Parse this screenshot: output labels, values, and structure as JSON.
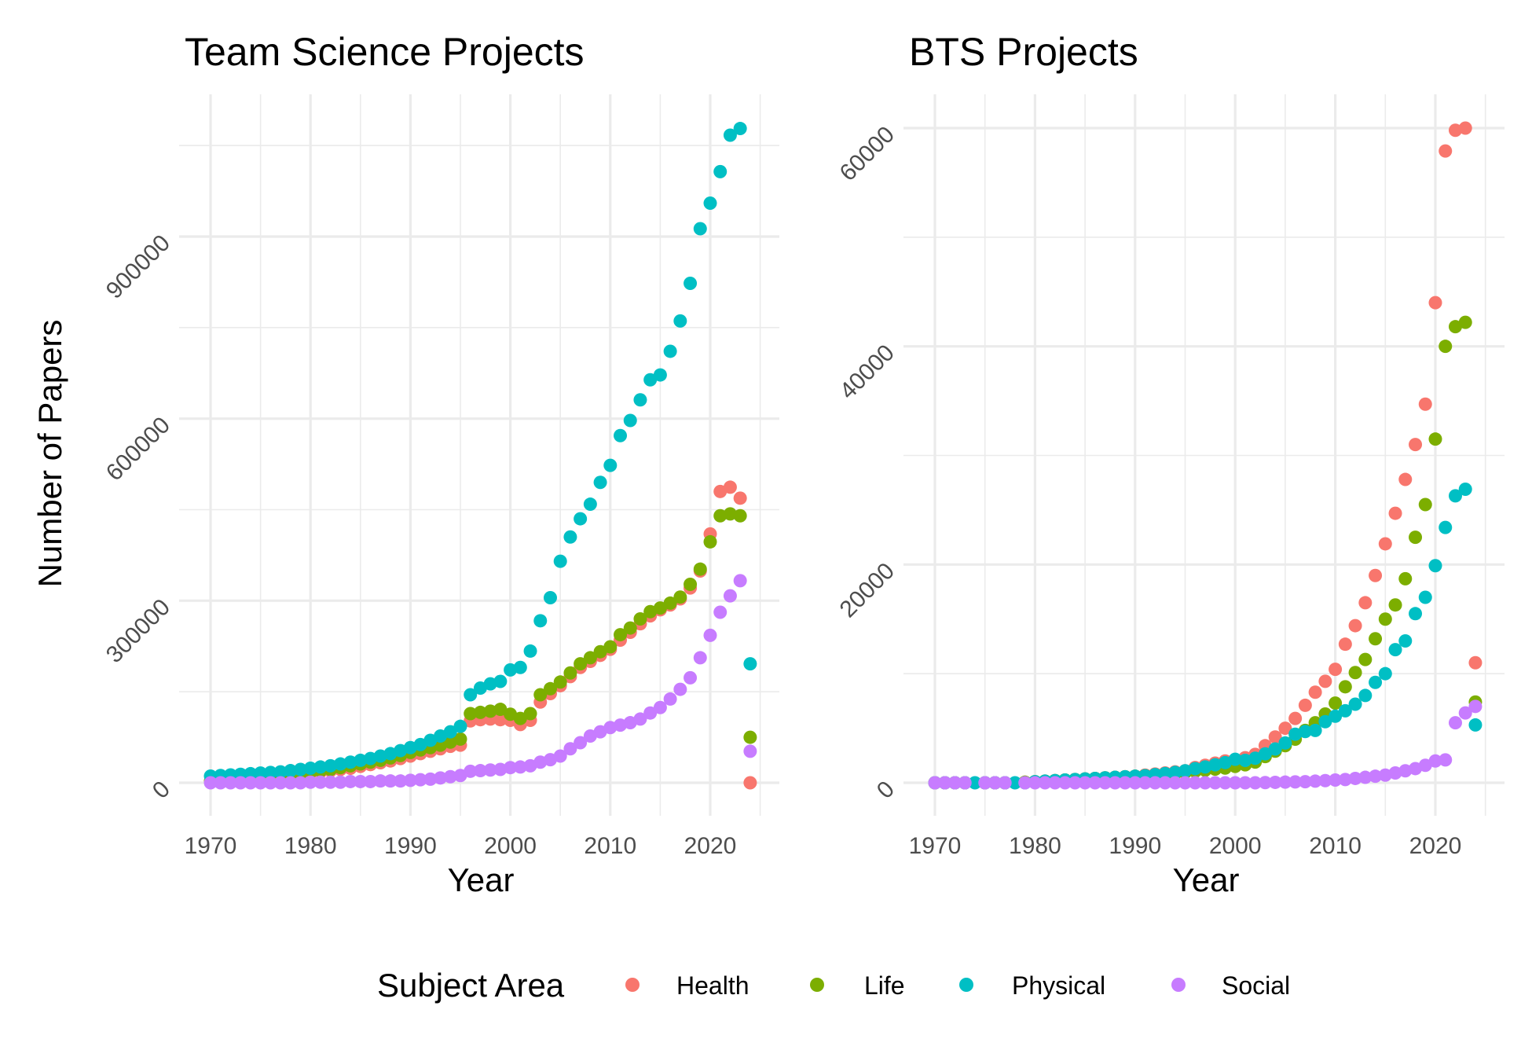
{
  "colors": {
    "Health": "#F8766D",
    "Life": "#7CAE00",
    "Physical": "#00BFC4",
    "Social": "#C77CFF"
  },
  "legend": {
    "title": "Subject Area",
    "placement": "bottom",
    "items": [
      {
        "label": "Health",
        "color": "#F8766D"
      },
      {
        "label": "Life",
        "color": "#7CAE00"
      },
      {
        "label": "Physical",
        "color": "#00BFC4"
      },
      {
        "label": "Social",
        "color": "#C77CFF"
      }
    ]
  },
  "chart_data": [
    {
      "type": "scatter",
      "title": "Team Science Projects",
      "xlabel": "Year",
      "ylabel": "Number of Papers",
      "xlim": [
        1970,
        2024
      ],
      "ylim": [
        0,
        1080000
      ],
      "xticks": [
        1970,
        1980,
        1990,
        2000,
        2010,
        2020
      ],
      "yticks": [
        0,
        300000,
        600000,
        900000
      ],
      "grid": true,
      "series": [
        {
          "name": "Health",
          "x": [
            1970,
            1971,
            1972,
            1973,
            1974,
            1975,
            1976,
            1977,
            1978,
            1979,
            1980,
            1981,
            1982,
            1983,
            1984,
            1985,
            1986,
            1987,
            1988,
            1989,
            1990,
            1991,
            1992,
            1993,
            1994,
            1995,
            1996,
            1997,
            1998,
            1999,
            2000,
            2001,
            2002,
            2003,
            2004,
            2005,
            2006,
            2007,
            2008,
            2009,
            2010,
            2011,
            2012,
            2013,
            2014,
            2015,
            2016,
            2017,
            2018,
            2019,
            2020,
            2021,
            2022,
            2023,
            2024
          ],
          "y": [
            2000,
            3000,
            4000,
            5000,
            6000,
            7000,
            8000,
            10000,
            12000,
            14000,
            16000,
            18000,
            20000,
            22000,
            24000,
            27000,
            30000,
            33000,
            36000,
            40000,
            44000,
            48000,
            52000,
            56000,
            60000,
            62000,
            102000,
            104000,
            105000,
            104000,
            103000,
            96000,
            103000,
            133000,
            147000,
            160000,
            175000,
            190000,
            200000,
            210000,
            220000,
            235000,
            248000,
            262000,
            275000,
            285000,
            293000,
            303000,
            321000,
            349000,
            410000,
            480000,
            487000,
            469000,
            0
          ]
        },
        {
          "name": "Life",
          "x": [
            1970,
            1971,
            1972,
            1973,
            1974,
            1975,
            1976,
            1977,
            1978,
            1979,
            1980,
            1981,
            1982,
            1983,
            1984,
            1985,
            1986,
            1987,
            1988,
            1989,
            1990,
            1991,
            1992,
            1993,
            1994,
            1995,
            1996,
            1997,
            1998,
            1999,
            2000,
            2001,
            2002,
            2003,
            2004,
            2005,
            2006,
            2007,
            2008,
            2009,
            2010,
            2011,
            2012,
            2013,
            2014,
            2015,
            2016,
            2017,
            2018,
            2019,
            2020,
            2021,
            2022,
            2023,
            2024
          ],
          "y": [
            3000,
            4000,
            5000,
            6000,
            7000,
            8000,
            10000,
            12000,
            14000,
            16000,
            18000,
            20000,
            22000,
            25000,
            28000,
            31000,
            34000,
            37000,
            41000,
            45000,
            50000,
            54000,
            58000,
            62000,
            67000,
            72000,
            114000,
            116000,
            118000,
            121000,
            113000,
            106000,
            114000,
            145000,
            155000,
            166000,
            181000,
            196000,
            206000,
            216000,
            224000,
            244000,
            255000,
            270000,
            282000,
            288000,
            296000,
            306000,
            327000,
            352000,
            397000,
            440000,
            443000,
            440000,
            75000
          ]
        },
        {
          "name": "Physical",
          "x": [
            1970,
            1971,
            1972,
            1973,
            1974,
            1975,
            1976,
            1977,
            1978,
            1979,
            1980,
            1981,
            1982,
            1983,
            1984,
            1985,
            1986,
            1987,
            1988,
            1989,
            1990,
            1991,
            1992,
            1993,
            1994,
            1995,
            1996,
            1997,
            1998,
            1999,
            2000,
            2001,
            2002,
            2003,
            2004,
            2005,
            2006,
            2007,
            2008,
            2009,
            2010,
            2011,
            2012,
            2013,
            2014,
            2015,
            2016,
            2017,
            2018,
            2019,
            2020,
            2021,
            2022,
            2023,
            2024
          ],
          "y": [
            11000,
            12000,
            13000,
            14000,
            15000,
            16000,
            17000,
            18000,
            20000,
            22000,
            24000,
            26000,
            28000,
            31000,
            34000,
            37000,
            40000,
            44000,
            48000,
            53000,
            58000,
            63000,
            70000,
            77000,
            84000,
            93000,
            145000,
            156000,
            163000,
            167000,
            186000,
            190000,
            217000,
            267000,
            305000,
            365000,
            405000,
            435000,
            459000,
            495000,
            523000,
            572000,
            597000,
            631000,
            664000,
            672000,
            711000,
            761000,
            823000,
            913000,
            955000,
            1007000,
            1067000,
            1078000,
            196000
          ]
        },
        {
          "name": "Social",
          "x": [
            1970,
            1971,
            1972,
            1973,
            1974,
            1975,
            1976,
            1977,
            1978,
            1979,
            1980,
            1981,
            1982,
            1983,
            1984,
            1985,
            1986,
            1987,
            1988,
            1989,
            1990,
            1991,
            1992,
            1993,
            1994,
            1995,
            1996,
            1997,
            1998,
            1999,
            2000,
            2001,
            2002,
            2003,
            2004,
            2005,
            2006,
            2007,
            2008,
            2009,
            2010,
            2011,
            2012,
            2013,
            2014,
            2015,
            2016,
            2017,
            2018,
            2019,
            2020,
            2021,
            2022,
            2023,
            2024
          ],
          "y": [
            0,
            0,
            0,
            0,
            0,
            0,
            0,
            0,
            0,
            0,
            1000,
            1000,
            1000,
            1000,
            2000,
            2000,
            2000,
            3000,
            3000,
            3000,
            4000,
            5000,
            6000,
            8000,
            10000,
            12000,
            19000,
            20000,
            21000,
            22000,
            25000,
            26000,
            28000,
            34000,
            38000,
            44000,
            56000,
            66000,
            77000,
            84000,
            91000,
            95000,
            99000,
            105000,
            115000,
            124000,
            138000,
            154000,
            173000,
            206000,
            243000,
            281000,
            308000,
            333000,
            52000
          ]
        }
      ]
    },
    {
      "type": "scatter",
      "title": "BTS Projects",
      "xlabel": "Year",
      "ylabel": "",
      "xlim": [
        1970,
        2024
      ],
      "ylim": [
        0,
        60000
      ],
      "xticks": [
        1970,
        1980,
        1990,
        2000,
        2010,
        2020
      ],
      "yticks": [
        0,
        20000,
        40000,
        60000
      ],
      "grid": true,
      "series": [
        {
          "name": "Health",
          "x": [
            1970,
            1971,
            1972,
            1973,
            1975,
            1976,
            1977,
            1979,
            1980,
            1981,
            1982,
            1983,
            1984,
            1985,
            1986,
            1987,
            1988,
            1989,
            1990,
            1991,
            1992,
            1993,
            1994,
            1995,
            1996,
            1997,
            1998,
            1999,
            2000,
            2001,
            2002,
            2003,
            2004,
            2005,
            2006,
            2007,
            2008,
            2009,
            2010,
            2011,
            2012,
            2013,
            2014,
            2015,
            2016,
            2017,
            2018,
            2019,
            2020,
            2021,
            2022,
            2023,
            2024
          ],
          "y": [
            0,
            0,
            0,
            0,
            0,
            0,
            0,
            50,
            100,
            150,
            200,
            250,
            300,
            350,
            400,
            450,
            500,
            550,
            600,
            700,
            800,
            900,
            1000,
            1100,
            1400,
            1600,
            1800,
            2000,
            2100,
            2300,
            2600,
            3400,
            4200,
            5000,
            5900,
            7100,
            8300,
            9300,
            10400,
            12700,
            14400,
            16500,
            19000,
            21900,
            24700,
            27800,
            31000,
            34700,
            44000,
            57900,
            59800,
            60000,
            11000
          ]
        },
        {
          "name": "Life",
          "x": [
            1970,
            1971,
            1972,
            1973,
            1975,
            1976,
            1977,
            1979,
            1980,
            1981,
            1982,
            1983,
            1984,
            1985,
            1986,
            1987,
            1988,
            1989,
            1990,
            1991,
            1992,
            1993,
            1994,
            1995,
            1996,
            1997,
            1998,
            1999,
            2000,
            2001,
            2002,
            2003,
            2004,
            2005,
            2006,
            2007,
            2008,
            2009,
            2010,
            2011,
            2012,
            2013,
            2014,
            2015,
            2016,
            2017,
            2018,
            2019,
            2020,
            2021,
            2022,
            2023,
            2024
          ],
          "y": [
            0,
            0,
            0,
            0,
            0,
            0,
            0,
            50,
            100,
            150,
            200,
            250,
            300,
            350,
            400,
            450,
            500,
            550,
            600,
            650,
            700,
            750,
            850,
            950,
            1050,
            1150,
            1250,
            1350,
            1500,
            1650,
            1900,
            2400,
            2900,
            3400,
            4000,
            4800,
            5500,
            6300,
            7300,
            8800,
            10100,
            11300,
            13200,
            15000,
            16300,
            18700,
            22500,
            25500,
            31500,
            40000,
            41800,
            42200,
            7400
          ]
        },
        {
          "name": "Physical",
          "x": [
            1970,
            1971,
            1972,
            1973,
            1974,
            1975,
            1976,
            1977,
            1978,
            1979,
            1980,
            1981,
            1982,
            1983,
            1984,
            1985,
            1986,
            1987,
            1988,
            1989,
            1990,
            1991,
            1992,
            1993,
            1994,
            1995,
            1996,
            1997,
            1998,
            1999,
            2000,
            2001,
            2002,
            2003,
            2004,
            2005,
            2006,
            2007,
            2008,
            2009,
            2010,
            2011,
            2012,
            2013,
            2014,
            2015,
            2016,
            2017,
            2018,
            2019,
            2020,
            2021,
            2022,
            2023,
            2024
          ],
          "y": [
            0,
            0,
            0,
            0,
            0,
            0,
            0,
            0,
            0,
            0,
            100,
            150,
            200,
            250,
            300,
            350,
            400,
            450,
            500,
            550,
            600,
            650,
            750,
            850,
            950,
            1100,
            1300,
            1450,
            1650,
            1850,
            2150,
            2050,
            2250,
            2650,
            3100,
            3650,
            4450,
            4700,
            4800,
            5600,
            6100,
            6600,
            7200,
            8000,
            9200,
            10000,
            12200,
            13000,
            15500,
            17000,
            19900,
            23400,
            26300,
            26900,
            5300
          ]
        },
        {
          "name": "Social",
          "x": [
            1970,
            1971,
            1972,
            1973,
            1975,
            1976,
            1977,
            1979,
            1980,
            1981,
            1982,
            1983,
            1984,
            1985,
            1986,
            1987,
            1988,
            1989,
            1990,
            1991,
            1992,
            1993,
            1994,
            1995,
            1996,
            1997,
            1998,
            1999,
            2000,
            2001,
            2002,
            2003,
            2004,
            2005,
            2006,
            2007,
            2008,
            2009,
            2010,
            2011,
            2012,
            2013,
            2014,
            2015,
            2016,
            2017,
            2018,
            2019,
            2020,
            2021,
            2022,
            2023,
            2024
          ],
          "y": [
            0,
            0,
            0,
            0,
            0,
            0,
            0,
            0,
            0,
            0,
            0,
            0,
            0,
            0,
            0,
            0,
            0,
            0,
            0,
            0,
            0,
            0,
            0,
            0,
            0,
            0,
            0,
            0,
            0,
            0,
            0,
            20,
            40,
            60,
            80,
            100,
            150,
            200,
            250,
            300,
            400,
            500,
            600,
            700,
            900,
            1100,
            1300,
            1600,
            2000,
            2100,
            5500,
            6400,
            7000
          ]
        }
      ]
    }
  ]
}
